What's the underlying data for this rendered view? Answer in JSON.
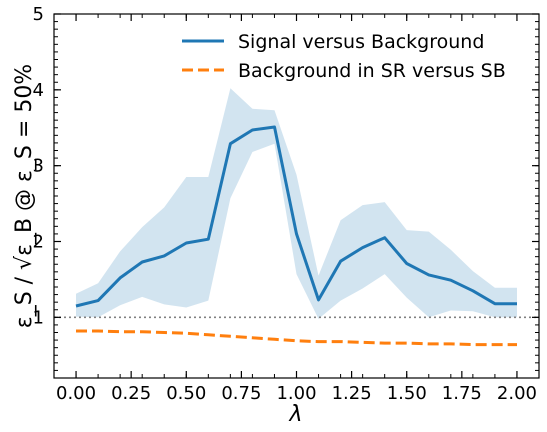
{
  "chart_data": {
    "type": "line",
    "xlabel": "λ",
    "ylabel": "ε_S / √ε_B @ ε_S = 50%",
    "xlim": [
      -0.1,
      2.1
    ],
    "ylim": [
      0.2,
      5.0
    ],
    "grid": false,
    "legend_position": "top-right",
    "x_tick_labels": [
      "0.00",
      "0.25",
      "0.50",
      "0.75",
      "1.00",
      "1.25",
      "1.50",
      "1.75",
      "2.00"
    ],
    "y_tick_labels": [
      "1",
      "2",
      "3",
      "4",
      "5"
    ],
    "x": [
      0.0,
      0.1,
      0.2,
      0.3,
      0.4,
      0.5,
      0.6,
      0.7,
      0.8,
      0.9,
      1.0,
      1.1,
      1.2,
      1.3,
      1.4,
      1.5,
      1.6,
      1.7,
      1.8,
      1.9,
      2.0
    ],
    "series": [
      {
        "name": "Signal versus Background",
        "color": "#1f77b4",
        "style": "solid",
        "values": [
          1.15,
          1.22,
          1.52,
          1.73,
          1.81,
          1.98,
          2.03,
          3.29,
          3.47,
          3.51,
          2.1,
          1.23,
          1.74,
          1.92,
          2.05,
          1.71,
          1.56,
          1.49,
          1.35,
          1.18,
          1.18
        ],
        "band_lower": [
          1.01,
          1.0,
          1.16,
          1.27,
          1.17,
          1.13,
          1.22,
          2.57,
          3.18,
          3.29,
          1.57,
          0.98,
          1.22,
          1.38,
          1.57,
          1.26,
          1.0,
          1.09,
          1.08,
          1.0,
          1.0
        ],
        "band_upper": [
          1.31,
          1.45,
          1.87,
          2.19,
          2.45,
          2.85,
          2.85,
          4.02,
          3.75,
          3.73,
          2.88,
          1.55,
          2.28,
          2.48,
          2.52,
          2.15,
          2.13,
          1.89,
          1.61,
          1.39,
          1.39
        ]
      },
      {
        "name": "Background in SR versus SB",
        "color": "#ff7f0e",
        "style": "dashed",
        "values": [
          0.82,
          0.82,
          0.81,
          0.81,
          0.8,
          0.79,
          0.77,
          0.75,
          0.73,
          0.71,
          0.69,
          0.68,
          0.68,
          0.67,
          0.66,
          0.66,
          0.65,
          0.65,
          0.64,
          0.64,
          0.64
        ]
      }
    ],
    "reference_line": {
      "y": 1.0,
      "color": "#808080",
      "style": "dotted"
    }
  }
}
